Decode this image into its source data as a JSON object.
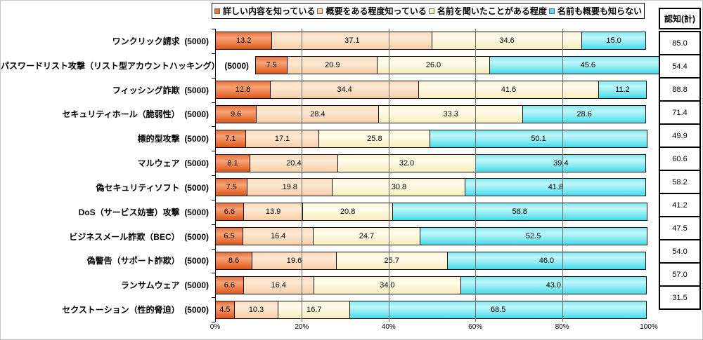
{
  "chart_data": {
    "type": "bar",
    "orientation": "horizontal-stacked",
    "legend_position": "top",
    "grid": true,
    "sample_size_label": "(5000)",
    "x_axis": {
      "range": [
        0,
        100
      ],
      "tick_values": [
        0,
        20,
        40,
        60,
        80,
        100
      ],
      "ticks": [
        "0%",
        "20%",
        "40%",
        "60%",
        "80%",
        "100%"
      ]
    },
    "categories": [
      "ワンクリック請求",
      "パスワードリスト攻撃（リスト型アカウントハッキング）",
      "フィッシング詐欺",
      "セキュリティホール（脆弱性）",
      "標的型攻撃",
      "マルウェア",
      "偽セキュリティソフト",
      "DoS（サービス妨害）攻撃",
      "ビジネスメール詐欺（BEC）",
      "偽警告（サポート詐欺）",
      "ランサムウェア",
      "セクストーション（性的脅迫）"
    ],
    "series": [
      {
        "name": "詳しい内容を知っている",
        "color": "#e8743c",
        "values": [
          13.2,
          7.5,
          12.8,
          9.6,
          7.1,
          8.1,
          7.5,
          6.6,
          6.5,
          8.6,
          6.6,
          4.5
        ]
      },
      {
        "name": "概要をある程度知っている",
        "color": "#f9d2ab",
        "values": [
          37.1,
          20.9,
          34.4,
          28.4,
          17.1,
          20.4,
          19.8,
          13.9,
          16.4,
          19.6,
          16.4,
          10.3
        ]
      },
      {
        "name": "名前を聞いたことがある程度",
        "color": "#fbf2c6",
        "values": [
          34.6,
          26.0,
          41.6,
          33.3,
          25.8,
          32.0,
          30.8,
          20.8,
          24.7,
          25.7,
          34.0,
          16.7
        ]
      },
      {
        "name": "名前も概要も知らない",
        "color": "#55dfee",
        "values": [
          15.0,
          45.6,
          11.2,
          28.6,
          50.1,
          39.4,
          41.8,
          58.8,
          52.5,
          46.0,
          43.0,
          68.5
        ]
      }
    ],
    "totals": {
      "header": "認知(計)",
      "values": [
        85.0,
        54.4,
        88.8,
        71.4,
        49.9,
        60.6,
        58.2,
        41.2,
        47.5,
        54.0,
        57.0,
        31.5
      ]
    }
  }
}
